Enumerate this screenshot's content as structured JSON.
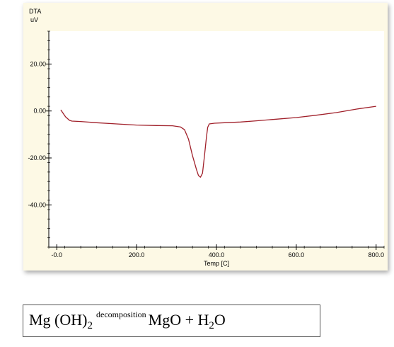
{
  "chart_data": {
    "type": "line",
    "title": "",
    "ylabel": "DTA",
    "yunit": "uV",
    "xlabel": "Temp [C]",
    "xlim": [
      -20,
      820
    ],
    "ylim": [
      -58,
      34
    ],
    "xticks": [
      0,
      200,
      400,
      600,
      800
    ],
    "xtick_labels": [
      "-0.0",
      "200.0",
      "400.0",
      "600.0",
      "800.0"
    ],
    "yticks": [
      20,
      0,
      -20,
      -40
    ],
    "ytick_labels": [
      "20.00",
      "0.00",
      "-20.00",
      "-40.00"
    ],
    "grid": false,
    "series": [
      {
        "color": "#a0202a",
        "x": [
          10,
          22,
          32,
          38,
          60,
          100,
          150,
          200,
          250,
          290,
          310,
          320,
          330,
          340,
          350,
          355,
          360,
          365,
          370,
          375,
          378,
          382,
          395,
          420,
          460,
          500,
          550,
          600,
          650,
          700,
          750,
          800
        ],
        "y": [
          0.5,
          -2.5,
          -4.0,
          -4.3,
          -4.5,
          -5.0,
          -5.5,
          -6.0,
          -6.2,
          -6.3,
          -6.8,
          -8.0,
          -12.0,
          -19.0,
          -25.0,
          -27.5,
          -28.2,
          -26.5,
          -19.0,
          -11.0,
          -7.0,
          -5.5,
          -5.2,
          -5.0,
          -4.7,
          -4.2,
          -3.5,
          -2.8,
          -1.8,
          -0.7,
          0.8,
          2.0
        ]
      }
    ]
  },
  "formula": {
    "reactant": "Mg (OH)",
    "reactant_sub": "2",
    "condition": "decomposition",
    "product1": "MgO + H",
    "product_sub": "2",
    "product2": "O"
  }
}
